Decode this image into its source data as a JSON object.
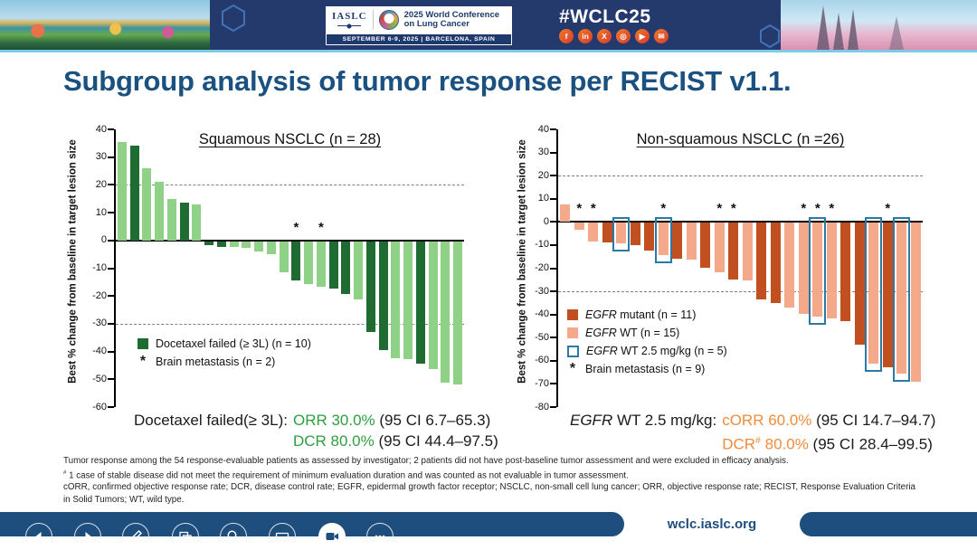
{
  "header": {
    "iaslc_label": "IASLC",
    "conference_line1": "2025 World Conference",
    "conference_line2": "on Lung Cancer",
    "date_line": "SEPTEMBER 6-9, 2025  |  BARCELONA, SPAIN",
    "hashtag": "#WCLC25",
    "social": [
      {
        "name": "facebook",
        "glyph": "f"
      },
      {
        "name": "linkedin",
        "glyph": "in"
      },
      {
        "name": "x-twitter",
        "glyph": "X"
      },
      {
        "name": "instagram",
        "glyph": "◎"
      },
      {
        "name": "youtube",
        "glyph": "▶"
      },
      {
        "name": "share",
        "glyph": "✉"
      }
    ],
    "colors": {
      "banner_navy": "#253a6c",
      "accent_light_blue": "#7ec9e9",
      "social_orange": "#e4562b"
    }
  },
  "slide": {
    "title": "Subgroup analysis of tumor response per RECIST v1.1.",
    "title_color": "#1a5180"
  },
  "chart_data": [
    {
      "type": "bar",
      "subtype": "waterfall",
      "title": "Squamous NSCLC (n = 28)",
      "ylabel": "Best % change from baseline in target lesion size",
      "ylim": [
        -60,
        40
      ],
      "yticks": [
        40,
        30,
        20,
        10,
        0,
        -10,
        -20,
        -30,
        -40,
        -50,
        -60
      ],
      "dashed_lines": [
        20,
        -30
      ],
      "grid": "dashed-thresholds-only",
      "legend_position": "inside-left-bottom",
      "colors": {
        "docetaxel_failed": "#1e6c31",
        "other": "#8fd186"
      },
      "bars": [
        {
          "v": 35.5,
          "s": "other"
        },
        {
          "v": 34,
          "s": "docetaxel_failed"
        },
        {
          "v": 26,
          "s": "other"
        },
        {
          "v": 21,
          "s": "other"
        },
        {
          "v": 15,
          "s": "other"
        },
        {
          "v": 13.5,
          "s": "docetaxel_failed"
        },
        {
          "v": 13,
          "s": "other"
        },
        {
          "v": -1.5,
          "s": "docetaxel_failed"
        },
        {
          "v": -2,
          "s": "docetaxel_failed"
        },
        {
          "v": -2,
          "s": "other"
        },
        {
          "v": -2.5,
          "s": "other"
        },
        {
          "v": -3.5,
          "s": "other"
        },
        {
          "v": -4.5,
          "s": "other"
        },
        {
          "v": -11,
          "s": "other"
        },
        {
          "v": -14,
          "s": "docetaxel_failed",
          "star": true
        },
        {
          "v": -15.5,
          "s": "other"
        },
        {
          "v": -16.5,
          "s": "other",
          "star": true
        },
        {
          "v": -17,
          "s": "docetaxel_failed"
        },
        {
          "v": -19,
          "s": "docetaxel_failed"
        },
        {
          "v": -21,
          "s": "other"
        },
        {
          "v": -32.5,
          "s": "docetaxel_failed"
        },
        {
          "v": -39,
          "s": "docetaxel_failed"
        },
        {
          "v": -42,
          "s": "other"
        },
        {
          "v": -42.5,
          "s": "other"
        },
        {
          "v": -44,
          "s": "docetaxel_failed"
        },
        {
          "v": -46,
          "s": "other"
        },
        {
          "v": -51,
          "s": "other"
        },
        {
          "v": -51.5,
          "s": "other"
        }
      ],
      "legend": [
        {
          "swatch": "docetaxel_failed",
          "segs": [
            {
              "t": "Docetaxel failed (≥ 3L) (n = 10)"
            }
          ]
        },
        {
          "swatch": "star",
          "segs": [
            {
              "t": "Brain metastasis (n = 2)"
            }
          ]
        }
      ],
      "annotation": {
        "accent_color": "#2f9e41",
        "prefix": [
          {
            "t": "Docetaxel failed(≥ 3L): "
          }
        ],
        "lines": [
          [
            {
              "t": "ORR 30.0%",
              "accent": true
            },
            {
              "t": " (95 CI 6.7–65.3)"
            }
          ],
          [
            {
              "t": "DCR 80.0%",
              "accent": true
            },
            {
              "t": " (95 CI 44.4–97.5)"
            }
          ]
        ]
      }
    },
    {
      "type": "bar",
      "subtype": "waterfall",
      "title": "Non-squamous NSCLC (n =26)",
      "ylabel": "Best % change from baseline in target lesion size",
      "ylim": [
        -80,
        40
      ],
      "yticks": [
        40,
        30,
        20,
        10,
        0,
        -10,
        -20,
        -30,
        -40,
        -50,
        -60,
        -70,
        -80
      ],
      "dashed_lines": [
        20,
        -30
      ],
      "grid": "dashed-thresholds-only",
      "legend_position": "inside-left-middle",
      "colors": {
        "egfr_mutant": "#c14f1f",
        "egfr_wt": "#f4a98a",
        "rect_outline": "#2a7aa4"
      },
      "bars": [
        {
          "v": 7.5,
          "s": "egfr_wt"
        },
        {
          "v": -3,
          "s": "egfr_wt",
          "star": true
        },
        {
          "v": -8,
          "s": "egfr_wt",
          "star": true
        },
        {
          "v": -8.5,
          "s": "egfr_mutant"
        },
        {
          "v": -9,
          "s": "egfr_wt",
          "rect": true
        },
        {
          "v": -9.5,
          "s": "egfr_mutant"
        },
        {
          "v": -12,
          "s": "egfr_mutant"
        },
        {
          "v": -14,
          "s": "egfr_wt",
          "star": true,
          "rect": true
        },
        {
          "v": -15.5,
          "s": "egfr_mutant"
        },
        {
          "v": -16,
          "s": "egfr_wt"
        },
        {
          "v": -19.5,
          "s": "egfr_mutant"
        },
        {
          "v": -21.5,
          "s": "egfr_wt",
          "star": true
        },
        {
          "v": -24.5,
          "s": "egfr_mutant",
          "star": true
        },
        {
          "v": -25,
          "s": "egfr_wt"
        },
        {
          "v": -33,
          "s": "egfr_mutant"
        },
        {
          "v": -34.5,
          "s": "egfr_mutant"
        },
        {
          "v": -36.5,
          "s": "egfr_wt"
        },
        {
          "v": -39.5,
          "s": "egfr_wt",
          "star": true
        },
        {
          "v": -40.5,
          "s": "egfr_wt",
          "star": true,
          "rect": true
        },
        {
          "v": -41.5,
          "s": "egfr_wt",
          "star": true
        },
        {
          "v": -42.5,
          "s": "egfr_mutant"
        },
        {
          "v": -52.5,
          "s": "egfr_mutant"
        },
        {
          "v": -61,
          "s": "egfr_wt",
          "rect": true
        },
        {
          "v": -62.5,
          "s": "egfr_mutant",
          "star": true
        },
        {
          "v": -65,
          "s": "egfr_wt",
          "rect": true
        },
        {
          "v": -68.5,
          "s": "egfr_wt"
        }
      ],
      "legend": [
        {
          "swatch": "egfr_mutant",
          "segs": [
            {
              "t": "EGFR",
              "italic": true
            },
            {
              "t": " mutant (n = 11)"
            }
          ]
        },
        {
          "swatch": "egfr_wt",
          "segs": [
            {
              "t": "EGFR",
              "italic": true
            },
            {
              "t": " WT (n = 15)"
            }
          ]
        },
        {
          "swatch": "rect",
          "segs": [
            {
              "t": "EGFR",
              "italic": true
            },
            {
              "t": " WT 2.5 mg/kg (n = 5)"
            }
          ]
        },
        {
          "swatch": "star",
          "segs": [
            {
              "t": "Brain metastasis (n = 9)"
            }
          ]
        }
      ],
      "annotation": {
        "accent_color": "#f08c3c",
        "prefix": [
          {
            "t": "EGFR",
            "italic": true
          },
          {
            "t": " WT 2.5 mg/kg: "
          }
        ],
        "lines": [
          [
            {
              "t": "cORR 60.0%",
              "accent": true
            },
            {
              "t": " (95 CI 14.7–94.7)"
            }
          ],
          [
            {
              "t": "DCR",
              "accent": true
            },
            {
              "t": "#",
              "accent": true,
              "sup": true
            },
            {
              "t": " 80.0%",
              "accent": true
            },
            {
              "t": " (95 CI 28.4–99.5)"
            }
          ]
        ]
      }
    }
  ],
  "footnotes": [
    [
      {
        "t": "Tumor response among the 54 response-evaluable patients as assessed by investigator; 2 patients did not have post-baseline tumor assessment and were excluded in efficacy analysis."
      }
    ],
    [
      {
        "t": "#",
        "sup": true
      },
      {
        "t": " 1 case of stable disease did not meet the requirement of minimum evaluation duration and was counted as not evaluable in tumor assessment."
      }
    ],
    [
      {
        "t": "cORR, confirmed objective response rate; DCR, disease control rate; EGFR, epidermal growth factor receptor; NSCLC, non-small cell lung cancer; ORR, objective response rate; RECIST, Response Evaluation Criteria in Solid Tumors; WT, wild type."
      }
    ]
  ],
  "footer": {
    "url": "wclc.iaslc.org"
  }
}
